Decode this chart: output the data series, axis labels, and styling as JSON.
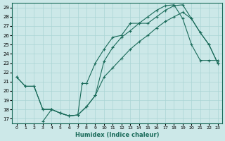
{
  "xlabel": "Humidex (Indice chaleur)",
  "bg_color": "#cce8e8",
  "grid_color": "#aad4d4",
  "line_color": "#1a6b5a",
  "xlim": [
    -0.5,
    23.5
  ],
  "ylim": [
    16.5,
    29.5
  ],
  "xticks": [
    0,
    1,
    2,
    3,
    4,
    5,
    6,
    7,
    8,
    9,
    10,
    11,
    12,
    13,
    14,
    15,
    16,
    17,
    18,
    19,
    20,
    21,
    22,
    23
  ],
  "yticks": [
    17,
    18,
    19,
    20,
    21,
    22,
    23,
    24,
    25,
    26,
    27,
    28,
    29
  ],
  "line1_x": [
    0,
    1,
    2,
    3,
    4,
    5,
    6,
    7,
    8,
    9,
    10,
    11,
    12,
    13,
    14,
    15,
    16,
    17,
    18,
    19,
    20,
    21,
    22,
    23
  ],
  "line1_y": [
    21.5,
    20.5,
    20.5,
    18.0,
    18.0,
    17.6,
    17.3,
    17.4,
    18.3,
    19.5,
    23.2,
    24.7,
    25.8,
    26.5,
    27.3,
    27.3,
    28.0,
    28.7,
    29.2,
    29.3,
    27.8,
    26.3,
    25.0,
    23.0
  ],
  "line2_x": [
    3,
    4,
    5,
    6,
    7,
    7.5,
    8,
    9,
    10,
    11,
    12,
    13,
    14,
    15,
    16,
    17,
    18,
    19,
    20,
    21,
    22,
    23
  ],
  "line2_y": [
    16.7,
    18.0,
    17.6,
    17.3,
    17.4,
    20.8,
    20.8,
    23.0,
    24.5,
    25.8,
    26.0,
    27.3,
    27.3,
    28.0,
    28.7,
    29.2,
    29.3,
    27.8,
    25.0,
    23.3,
    23.3,
    23.3
  ],
  "line3_x": [
    0,
    1,
    2,
    3,
    4,
    5,
    6,
    7,
    8,
    9,
    10,
    11,
    12,
    13,
    14,
    15,
    16,
    17,
    18,
    19,
    20,
    21,
    22,
    23
  ],
  "line3_y": [
    21.5,
    20.5,
    20.5,
    18.0,
    18.0,
    17.6,
    17.3,
    17.4,
    18.3,
    19.5,
    21.5,
    22.5,
    23.5,
    24.5,
    25.3,
    26.0,
    26.8,
    27.5,
    28.0,
    28.5,
    27.8,
    26.3,
    25.0,
    23.0
  ]
}
